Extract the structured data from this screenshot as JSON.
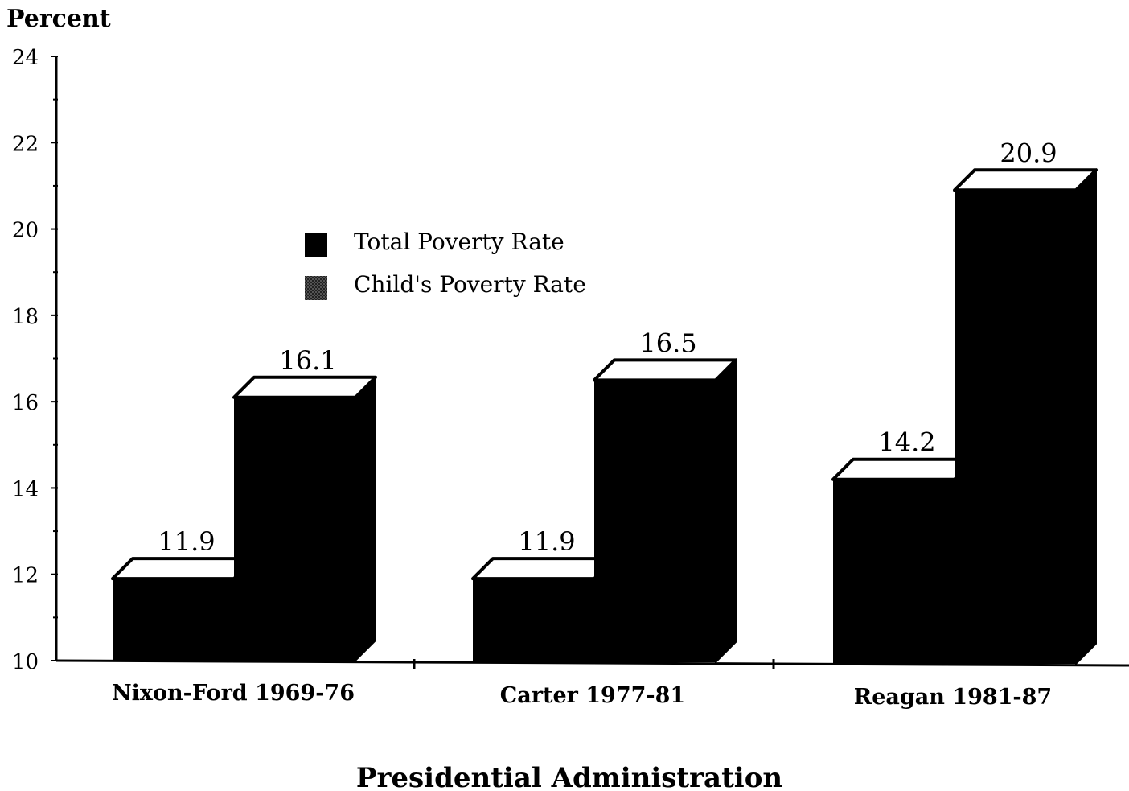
{
  "chart_data": {
    "type": "bar",
    "ylabel": "Percent",
    "xlabel": "Presidential Administration",
    "ylim": [
      10,
      24
    ],
    "yticks": [
      10,
      12,
      14,
      16,
      18,
      20,
      22,
      24
    ],
    "categories": [
      "Nixon-Ford 1969-76",
      "Carter 1977-81",
      "Reagan 1981-87"
    ],
    "series": [
      {
        "name": "Total Poverty Rate",
        "values": [
          11.9,
          11.9,
          14.2
        ],
        "value_labels": [
          "11.9",
          "11.9",
          "14.2"
        ],
        "color": "#000000"
      },
      {
        "name": "Child's Poverty Rate",
        "values": [
          16.1,
          16.5,
          20.9
        ],
        "value_labels": [
          "16.1",
          "16.5",
          "20.9"
        ],
        "color": "#111111"
      }
    ],
    "legend": {
      "position": "upper-left-inside",
      "swatch_style": [
        "solid",
        "stippled"
      ]
    },
    "grid": false,
    "style": "3d-bars"
  }
}
